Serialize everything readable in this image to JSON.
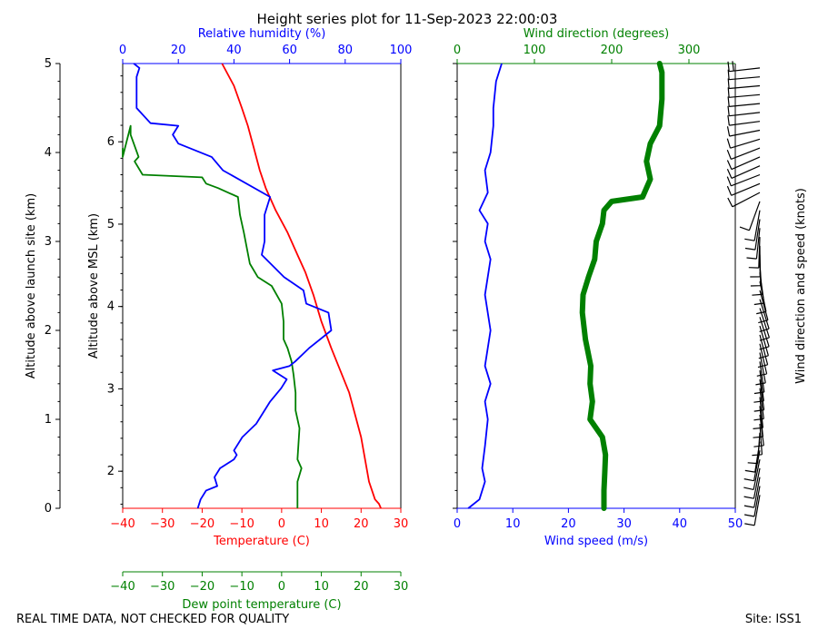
{
  "title": "Height series plot for 11-Sep-2023 22:00:03",
  "footer_left": "REAL TIME DATA, NOT CHECKED FOR QUALITY",
  "footer_right": "Site: ISS1",
  "colors": {
    "temperature": "#ff0000",
    "dewpoint": "#008000",
    "rh": "#0000ff",
    "wspd": "#0000ff",
    "wdir": "#008000",
    "axis": "#000000"
  },
  "chart_data": [
    {
      "type": "line",
      "panel": "thermodynamic",
      "axes": {
        "y_left_outer": {
          "label": "Altitude above launch site (km)",
          "lim": [
            0,
            5
          ],
          "ticks": [
            0,
            1,
            2,
            3,
            4,
            5
          ]
        },
        "y_left_inner": {
          "label": "Altitude above MSL (km)",
          "lim": [
            1.55,
            6.95
          ],
          "ticks": [
            2,
            3,
            4,
            5,
            6
          ]
        },
        "x_bottom": {
          "label": "Temperature (C)",
          "lim": [
            -40,
            30
          ],
          "ticks": [
            -40,
            -30,
            -20,
            -10,
            0,
            10,
            20,
            30
          ]
        },
        "x_top": {
          "label": "Relative humidity (%)",
          "lim": [
            0,
            100
          ],
          "ticks": [
            0,
            20,
            40,
            60,
            80,
            100
          ]
        },
        "x_bottom2": {
          "label": "Dew point temperature (C)",
          "lim": [
            -40,
            30
          ],
          "ticks": [
            -40,
            -30,
            -20,
            -10,
            0,
            10,
            20,
            30
          ]
        }
      },
      "series": [
        {
          "name": "Temperature",
          "axis": "x_bottom",
          "points": [
            [
              25.0,
              0.0
            ],
            [
              24.5,
              0.05
            ],
            [
              23.5,
              0.1
            ],
            [
              22.0,
              0.3
            ],
            [
              20.0,
              0.8
            ],
            [
              17.0,
              1.3
            ],
            [
              12.5,
              1.8
            ],
            [
              10.0,
              2.1
            ],
            [
              8.0,
              2.4
            ],
            [
              6.0,
              2.65
            ],
            [
              4.0,
              2.85
            ],
            [
              1.5,
              3.1
            ],
            [
              -1.5,
              3.35
            ],
            [
              -4.0,
              3.6
            ],
            [
              -5.5,
              3.8
            ],
            [
              -7.0,
              4.05
            ],
            [
              -8.5,
              4.3
            ],
            [
              -10.0,
              4.5
            ],
            [
              -12.0,
              4.75
            ],
            [
              -15.0,
              5.0
            ]
          ]
        },
        {
          "name": "Dew point",
          "axis": "x_bottom2",
          "points": [
            [
              4.0,
              0.0
            ],
            [
              4.0,
              0.3
            ],
            [
              5.0,
              0.45
            ],
            [
              4.0,
              0.55
            ],
            [
              4.5,
              0.9
            ],
            [
              3.5,
              1.1
            ],
            [
              3.5,
              1.3
            ],
            [
              3.0,
              1.5
            ],
            [
              2.5,
              1.65
            ],
            [
              1.5,
              1.8
            ],
            [
              0.5,
              1.9
            ],
            [
              0.5,
              2.1
            ],
            [
              0.0,
              2.3
            ],
            [
              -2.5,
              2.5
            ],
            [
              -6.0,
              2.6
            ],
            [
              -8.0,
              2.75
            ],
            [
              -9.5,
              3.1
            ],
            [
              -10.5,
              3.3
            ],
            [
              -11.0,
              3.5
            ],
            [
              -16.0,
              3.6
            ],
            [
              -19.0,
              3.65
            ],
            [
              -20.0,
              3.72
            ],
            [
              -35.0,
              3.75
            ],
            [
              -37.0,
              3.9
            ],
            [
              -36.0,
              3.95
            ],
            [
              -38.0,
              4.2
            ],
            [
              -38.0,
              4.3
            ],
            [
              -40.0,
              3.95
            ],
            [
              -40.0,
              4.05
            ]
          ]
        },
        {
          "name": "Relative humidity",
          "axis": "x_top",
          "points": [
            [
              27.0,
              0.0
            ],
            [
              28.0,
              0.1
            ],
            [
              30.0,
              0.2
            ],
            [
              34.0,
              0.25
            ],
            [
              33.0,
              0.35
            ],
            [
              35.0,
              0.45
            ],
            [
              40.0,
              0.55
            ],
            [
              41.0,
              0.6
            ],
            [
              40.0,
              0.65
            ],
            [
              43.0,
              0.8
            ],
            [
              48.0,
              0.95
            ],
            [
              50.0,
              1.05
            ],
            [
              53.0,
              1.2
            ],
            [
              57.0,
              1.35
            ],
            [
              59.0,
              1.45
            ],
            [
              54.0,
              1.55
            ],
            [
              60.0,
              1.6
            ],
            [
              62.0,
              1.65
            ],
            [
              67.0,
              1.8
            ],
            [
              75.0,
              2.0
            ],
            [
              74.0,
              2.2
            ],
            [
              66.0,
              2.3
            ],
            [
              65.0,
              2.45
            ],
            [
              58.0,
              2.6
            ],
            [
              50.0,
              2.85
            ],
            [
              51.0,
              3.0
            ],
            [
              51.0,
              3.3
            ],
            [
              53.0,
              3.5
            ],
            [
              36.0,
              3.8
            ],
            [
              32.0,
              3.95
            ],
            [
              20.0,
              4.1
            ],
            [
              18.0,
              4.2
            ],
            [
              20.0,
              4.3
            ],
            [
              10.0,
              4.33
            ],
            [
              5.0,
              4.5
            ],
            [
              5.0,
              4.85
            ],
            [
              6.0,
              4.95
            ],
            [
              4.0,
              5.0
            ]
          ]
        }
      ]
    },
    {
      "type": "line",
      "panel": "wind",
      "axes": {
        "x_bottom": {
          "label": "Wind speed (m/s)",
          "lim": [
            0,
            50
          ],
          "ticks": [
            0,
            10,
            20,
            30,
            40,
            50
          ]
        },
        "x_top": {
          "label": "Wind direction (degrees)",
          "lim": [
            0,
            360
          ],
          "ticks": [
            0,
            100,
            200,
            300
          ]
        },
        "y_right": {
          "label": "Wind direction and speed (knots)"
        }
      },
      "series": [
        {
          "name": "Wind speed",
          "axis": "x_bottom",
          "points": [
            [
              2.0,
              0.0
            ],
            [
              4.0,
              0.1
            ],
            [
              5.0,
              0.3
            ],
            [
              4.5,
              0.45
            ],
            [
              5.0,
              0.7
            ],
            [
              5.5,
              1.0
            ],
            [
              5.0,
              1.2
            ],
            [
              6.0,
              1.4
            ],
            [
              5.0,
              1.6
            ],
            [
              6.0,
              2.0
            ],
            [
              5.0,
              2.4
            ],
            [
              6.0,
              2.8
            ],
            [
              5.0,
              3.0
            ],
            [
              5.5,
              3.2
            ],
            [
              4.0,
              3.35
            ],
            [
              5.5,
              3.55
            ],
            [
              5.0,
              3.8
            ],
            [
              6.0,
              4.0
            ],
            [
              6.5,
              4.3
            ],
            [
              6.5,
              4.5
            ],
            [
              7.0,
              4.8
            ],
            [
              8.0,
              5.0
            ]
          ]
        },
        {
          "name": "Wind direction",
          "axis": "x_top",
          "points": [
            [
              190.0,
              0.0
            ],
            [
              190.0,
              0.2
            ],
            [
              191.0,
              0.4
            ],
            [
              192.0,
              0.6
            ],
            [
              188.0,
              0.8
            ],
            [
              172.0,
              1.0
            ],
            [
              175.0,
              1.2
            ],
            [
              172.0,
              1.4
            ],
            [
              173.0,
              1.6
            ],
            [
              166.0,
              1.9
            ],
            [
              162.0,
              2.2
            ],
            [
              163.0,
              2.4
            ],
            [
              170.0,
              2.6
            ],
            [
              178.0,
              2.8
            ],
            [
              180.0,
              3.0
            ],
            [
              188.0,
              3.2
            ],
            [
              190.0,
              3.35
            ],
            [
              200.0,
              3.45
            ],
            [
              240.0,
              3.5
            ],
            [
              250.0,
              3.7
            ],
            [
              245.0,
              3.9
            ],
            [
              250.0,
              4.1
            ],
            [
              262.0,
              4.3
            ],
            [
              265.0,
              4.6
            ],
            [
              265.0,
              4.9
            ],
            [
              262.0,
              5.0
            ]
          ]
        }
      ]
    }
  ]
}
